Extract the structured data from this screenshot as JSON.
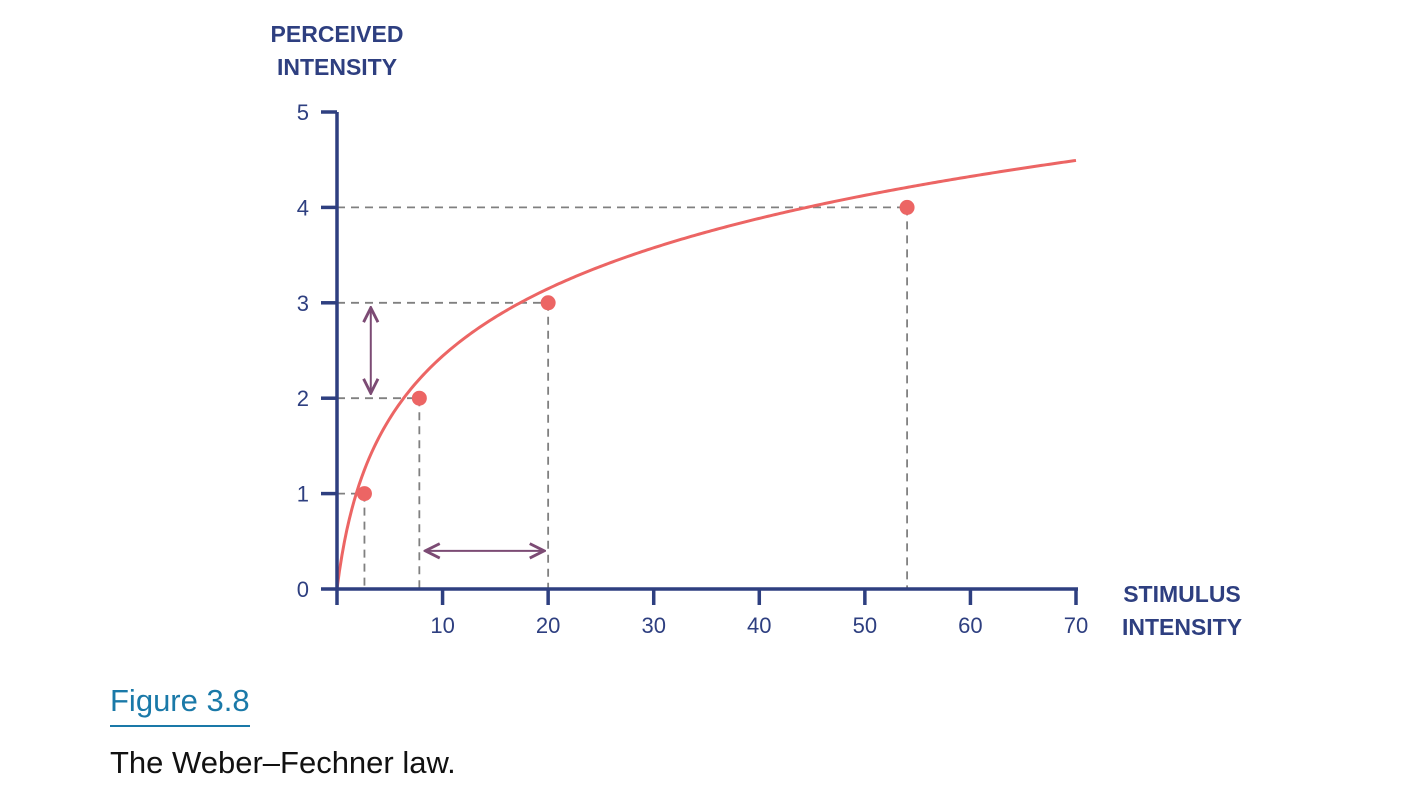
{
  "chart_data": {
    "type": "line",
    "ylabel": [
      "PERCEIVED",
      "INTENSITY"
    ],
    "xlabel": [
      "STIMULUS",
      "INTENSITY"
    ],
    "x_ticks": [
      10,
      20,
      30,
      40,
      50,
      60,
      70
    ],
    "y_ticks": [
      0,
      1,
      2,
      3,
      4,
      5
    ],
    "xlim": [
      0,
      70
    ],
    "ylim": [
      0,
      5
    ],
    "curve": {
      "formula": "y = ln(1 + x/1.25) / 0.9",
      "x_range": [
        0,
        70
      ]
    },
    "points": [
      {
        "x": 2.6,
        "y": 1
      },
      {
        "x": 7.8,
        "y": 2
      },
      {
        "x": 20,
        "y": 3
      },
      {
        "x": 54,
        "y": 4
      }
    ],
    "annotations": [
      {
        "type": "vertical-double-arrow",
        "x": 3.2,
        "y_from": 2,
        "y_to": 3
      },
      {
        "type": "horizontal-double-arrow",
        "y": 0.4,
        "x_from": 7.8,
        "x_to": 20
      }
    ],
    "colors": {
      "axis": "#2e3f80",
      "curve": "#ec6564",
      "guide": "#808080",
      "arrow": "#7c4b74"
    }
  },
  "caption": {
    "label": "Figure 3.8",
    "text": "The Weber–Fechner law."
  }
}
